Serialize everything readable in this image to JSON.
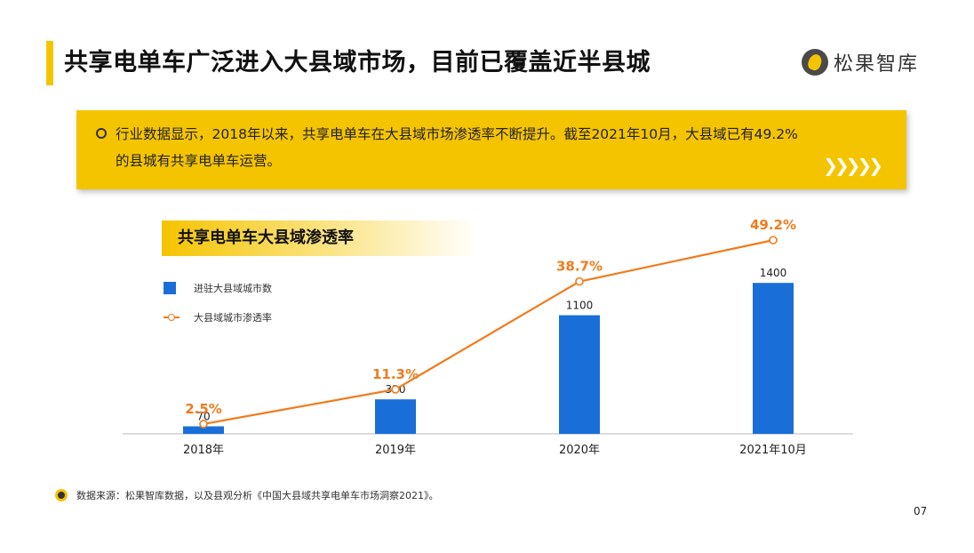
{
  "header": {
    "title": "共享电单车广泛进入大县域市场，目前已覆盖近半县城",
    "logo_text": "松果智库"
  },
  "info": {
    "line1": "行业数据显示，2018年以来，共享电单车在大县域市场渗透率不断提升。截至2021年10月，大县域已有49.2%",
    "line2": "的县城有共享电单车运营。"
  },
  "chart_data": {
    "type": "bar",
    "title": "共享电单车大县域渗透率",
    "categories": [
      "2018年",
      "2019年",
      "2020年",
      "2021年10月"
    ],
    "series": [
      {
        "name": "进驻大县域城市数",
        "type": "bar",
        "values": [
          70,
          320,
          1100,
          1400
        ],
        "labels": [
          "70",
          "320",
          "1100",
          "1400"
        ]
      },
      {
        "name": "大县域城市渗透率",
        "type": "line",
        "values": [
          2.5,
          11.3,
          38.7,
          49.2
        ],
        "labels": [
          "2.5%",
          "11.3%",
          "38.7%",
          "49.2%"
        ]
      }
    ],
    "bar_ylim": [
      0,
      1550
    ],
    "line_ylim": [
      0,
      56
    ],
    "legend_position": "top-left",
    "grid": false
  },
  "footer": {
    "source": "数据来源：松果智库数据，以及县观分析《中国大县域共享电单车市场洞察2021》。",
    "page": "07"
  },
  "colors": {
    "accent": "#f5c400",
    "bar": "#1a6ed8",
    "line": "#f07b1c"
  }
}
